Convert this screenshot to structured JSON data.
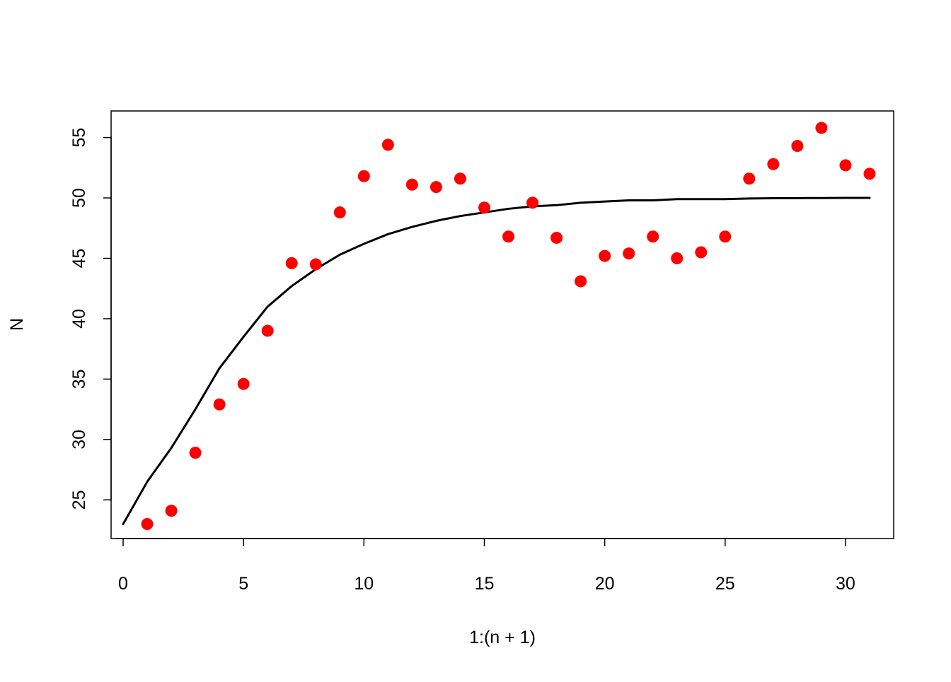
{
  "chart_data": {
    "type": "scatter",
    "xlabel": "1:(n + 1)",
    "ylabel": "N",
    "xlim": [
      -0.5,
      32
    ],
    "ylim": [
      21.8,
      57.2
    ],
    "grid": false,
    "xticks": [
      0,
      5,
      10,
      15,
      20,
      25,
      30
    ],
    "yticks": [
      25,
      30,
      35,
      40,
      45,
      50,
      55
    ],
    "points": {
      "color": "#ff0000",
      "x": [
        1,
        2,
        3,
        4,
        5,
        6,
        7,
        8,
        9,
        10,
        11,
        12,
        13,
        14,
        15,
        16,
        17,
        18,
        19,
        20,
        21,
        22,
        23,
        24,
        25,
        26,
        27,
        28,
        29,
        30,
        31
      ],
      "y": [
        23.0,
        24.1,
        28.9,
        32.9,
        34.6,
        39.0,
        44.6,
        44.5,
        48.8,
        51.8,
        54.4,
        51.1,
        50.9,
        51.6,
        49.2,
        46.8,
        49.6,
        46.7,
        43.1,
        45.2,
        45.4,
        46.8,
        45.0,
        45.5,
        46.8,
        51.6,
        52.8,
        54.3,
        55.8,
        52.7,
        52.0
      ]
    },
    "series": [
      {
        "color": "#000000",
        "x": [
          0,
          1,
          2,
          3,
          4,
          5,
          6,
          7,
          8,
          9,
          10,
          11,
          12,
          13,
          14,
          15,
          16,
          17,
          18,
          19,
          20,
          21,
          22,
          23,
          24,
          25,
          26,
          27,
          28,
          29,
          30,
          31
        ],
        "y": [
          23.0,
          26.5,
          29.3,
          32.5,
          35.9,
          38.5,
          41.0,
          42.7,
          44.1,
          45.3,
          46.2,
          47.0,
          47.6,
          48.1,
          48.5,
          48.8,
          49.1,
          49.3,
          49.4,
          49.6,
          49.7,
          49.8,
          49.8,
          49.9,
          49.9,
          49.9,
          49.95,
          49.97,
          49.98,
          49.99,
          50.0,
          50.0
        ]
      }
    ]
  }
}
